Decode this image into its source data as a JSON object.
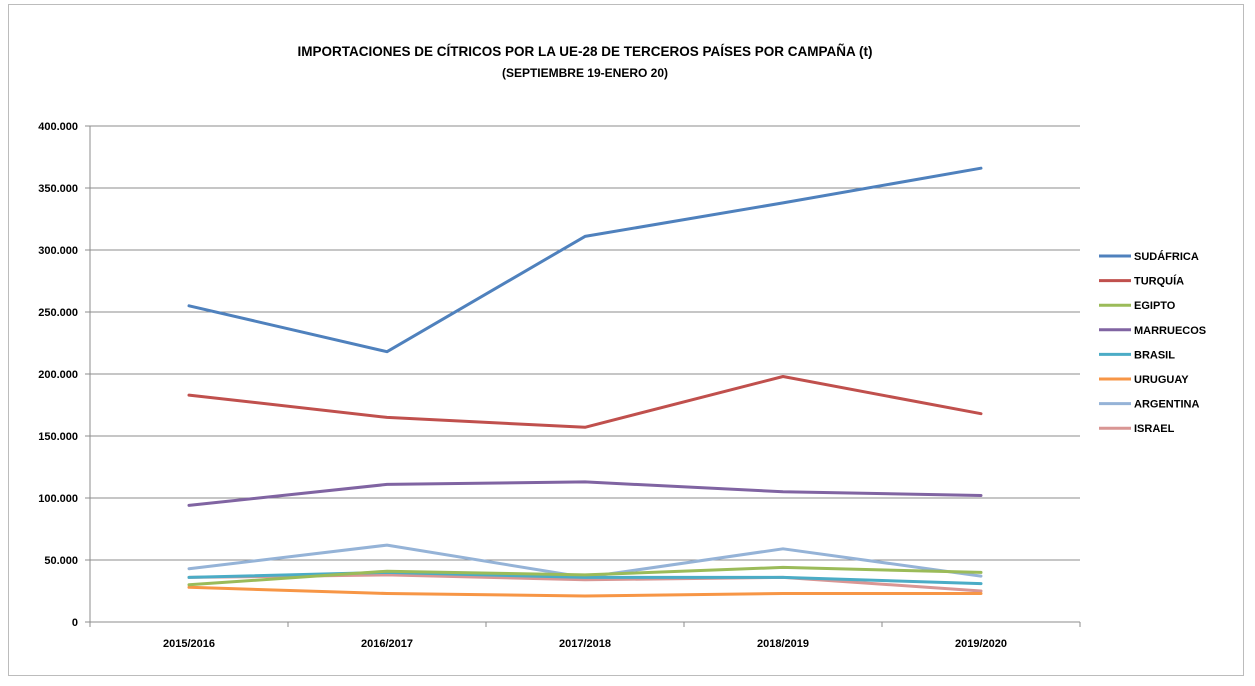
{
  "chart_data": {
    "type": "line",
    "title": "IMPORTACIONES DE CÍTRICOS POR LA UE-28 DE TERCEROS PAÍSES POR CAMPAÑA  (t)",
    "subtitle": "(SEPTIEMBRE 19-ENERO 20)",
    "xlabel": "",
    "ylabel": "",
    "categories": [
      "2015/2016",
      "2016/2017",
      "2017/2018",
      "2018/2019",
      "2019/2020"
    ],
    "ylim": [
      0,
      400000
    ],
    "ytick_values": [
      0,
      50000,
      100000,
      150000,
      200000,
      250000,
      300000,
      350000,
      400000
    ],
    "ytick_labels": [
      "0",
      "50.000",
      "100.000",
      "150.000",
      "200.000",
      "250.000",
      "300.000",
      "350.000",
      "400.000"
    ],
    "grid": true,
    "legend_position": "right",
    "series": [
      {
        "name": "SUDÁFRICA",
        "color": "#4F81BD",
        "values": [
          255000,
          218000,
          311000,
          338000,
          366000
        ]
      },
      {
        "name": "TURQUÍA",
        "color": "#C0504D",
        "values": [
          183000,
          165000,
          157000,
          198000,
          168000
        ]
      },
      {
        "name": "EGIPTO",
        "color": "#9BBB59",
        "values": [
          30000,
          41000,
          38000,
          44000,
          40000
        ]
      },
      {
        "name": "MARRUECOS",
        "color": "#8064A2",
        "values": [
          94000,
          111000,
          113000,
          105000,
          102000
        ]
      },
      {
        "name": "BRASIL",
        "color": "#4BACC6",
        "values": [
          36000,
          40000,
          36000,
          36000,
          31000
        ]
      },
      {
        "name": "URUGUAY",
        "color": "#F79646",
        "values": [
          28000,
          23000,
          21000,
          23000,
          23000
        ]
      },
      {
        "name": "ARGENTINA",
        "color": "#95B3D7",
        "values": [
          43000,
          62000,
          36000,
          59000,
          37000
        ]
      },
      {
        "name": "ISRAEL",
        "color": "#D99694",
        "values": [
          36000,
          38000,
          34000,
          36000,
          25000
        ]
      }
    ]
  }
}
